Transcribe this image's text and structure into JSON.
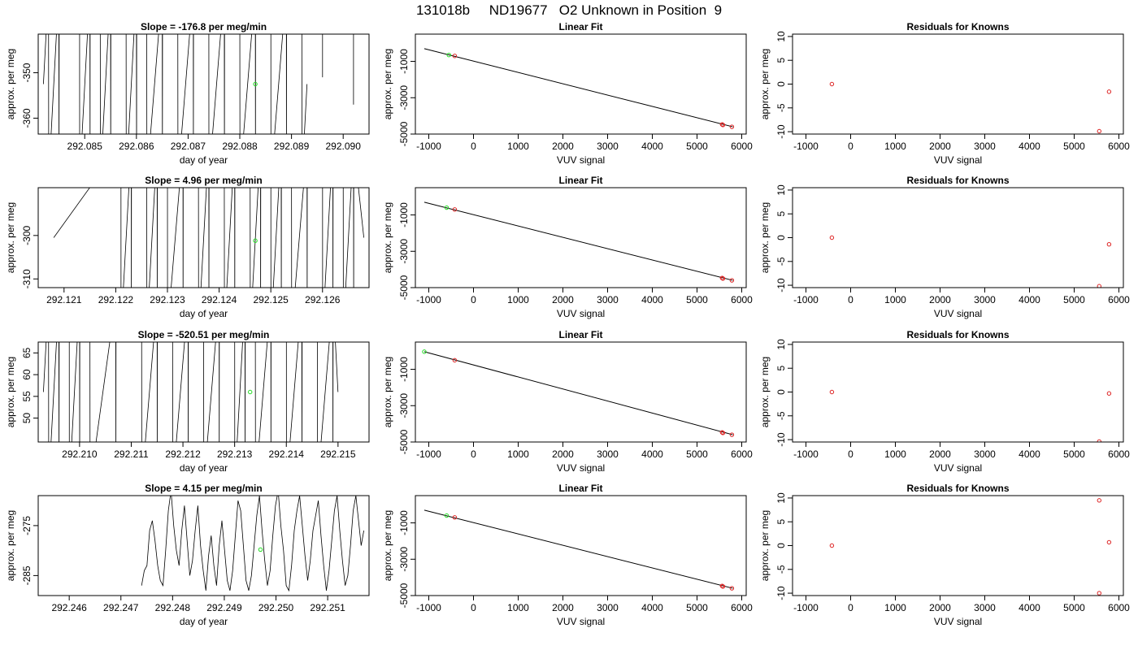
{
  "page_title": "131018b     ND19677   O2 Unknown in Position  9",
  "colors": {
    "known_point": "#dd2222",
    "unknown_point": "#22dd22",
    "line": "#000000"
  },
  "chart_data": [
    {
      "type": "line",
      "title": "Slope =  -176.8  per meg/min",
      "xlabel": "day of year",
      "ylabel": "approx. per meg",
      "xlim": [
        292.0841,
        292.0905
      ],
      "ylim": [
        -363.5,
        -341.5
      ],
      "xticks": [
        "292.085",
        "292.086",
        "292.087",
        "292.088",
        "292.089",
        "292.090"
      ],
      "yticks": [
        "-360",
        "-350"
      ],
      "trace_style": "spikes",
      "x_start": 292.0842,
      "x_end": 292.0893,
      "spike_days": [
        292.0843,
        292.0845,
        292.0849,
        292.0851,
        292.0853,
        292.0855,
        292.0858,
        292.086,
        292.0862,
        292.0865,
        292.0868,
        292.0871,
        292.0874,
        292.0877,
        292.088,
        292.0883,
        292.0886,
        292.0889,
        292.0892
      ],
      "tail_x": [
        292.0896,
        292.0902
      ],
      "tail_y": [
        -351,
        -357
      ],
      "points": [
        {
          "x": 292.0883,
          "y": -352.5,
          "kind": "unknown"
        }
      ]
    },
    {
      "type": "scatter",
      "title": "Linear Fit",
      "xlabel": "VUV signal",
      "ylabel": "approx. per meg",
      "xlim": [
        -1300,
        6100
      ],
      "ylim": [
        -5000,
        500
      ],
      "xticks": [
        "-1000",
        "0",
        "1000",
        "2000",
        "3000",
        "4000",
        "5000",
        "6000"
      ],
      "yticks": [
        "-5000",
        "-3000",
        "-1000"
      ],
      "fit_line": {
        "x": [
          -1100,
          5800
        ],
        "y": [
          -300,
          -4600
        ]
      },
      "points": [
        {
          "x": -550,
          "y": -650,
          "kind": "unknown"
        },
        {
          "x": -420,
          "y": -700,
          "kind": "known"
        },
        {
          "x": 5560,
          "y": -4470,
          "kind": "known"
        },
        {
          "x": 5580,
          "y": -4500,
          "kind": "known"
        },
        {
          "x": 5780,
          "y": -4600,
          "kind": "known"
        }
      ]
    },
    {
      "type": "scatter",
      "title": "Residuals for Knowns",
      "xlabel": "VUV signal",
      "ylabel": "approx. per meg",
      "xlim": [
        -1300,
        6100
      ],
      "ylim": [
        -10.5,
        10.5
      ],
      "xticks": [
        "-1000",
        "0",
        "1000",
        "2000",
        "3000",
        "4000",
        "5000",
        "6000"
      ],
      "yticks": [
        "-10",
        "-5",
        "0",
        "5",
        "10"
      ],
      "points": [
        {
          "x": -420,
          "y": 0,
          "kind": "known"
        },
        {
          "x": 5560,
          "y": -9.9,
          "kind": "known"
        },
        {
          "x": 5780,
          "y": -1.6,
          "kind": "known"
        }
      ]
    },
    {
      "type": "line",
      "title": "Slope =  4.96  per meg/min",
      "xlabel": "day of year",
      "ylabel": "approx. per meg",
      "xlim": [
        292.1205,
        292.1269
      ],
      "ylim": [
        -312,
        -289
      ],
      "xticks": [
        "292.121",
        "292.122",
        "292.123",
        "292.124",
        "292.125",
        "292.126"
      ],
      "yticks": [
        "-310",
        "-300"
      ],
      "trace_style": "spikes",
      "x_start": 292.1208,
      "x_end": 292.1268,
      "spike_days": [
        292.1221,
        292.1223,
        292.1226,
        292.1228,
        292.123,
        292.1233,
        292.1236,
        292.1238,
        292.1241,
        292.1243,
        292.1246,
        292.1248,
        292.125,
        292.1252,
        292.1254,
        292.1257,
        292.126,
        292.1262,
        292.1264,
        292.1266
      ],
      "points": [
        {
          "x": 292.1247,
          "y": -301.2,
          "kind": "unknown"
        }
      ]
    },
    {
      "type": "scatter",
      "title": "Linear Fit",
      "xlabel": "VUV signal",
      "ylabel": "approx. per meg",
      "xlim": [
        -1300,
        6100
      ],
      "ylim": [
        -5000,
        500
      ],
      "xticks": [
        "-1000",
        "0",
        "1000",
        "2000",
        "3000",
        "4000",
        "5000",
        "6000"
      ],
      "yticks": [
        "-5000",
        "-3000",
        "-1000"
      ],
      "fit_line": {
        "x": [
          -1100,
          5800
        ],
        "y": [
          -300,
          -4600
        ]
      },
      "points": [
        {
          "x": -600,
          "y": -600,
          "kind": "unknown"
        },
        {
          "x": -420,
          "y": -700,
          "kind": "known"
        },
        {
          "x": 5560,
          "y": -4470,
          "kind": "known"
        },
        {
          "x": 5580,
          "y": -4500,
          "kind": "known"
        },
        {
          "x": 5780,
          "y": -4600,
          "kind": "known"
        }
      ]
    },
    {
      "type": "scatter",
      "title": "Residuals for Knowns",
      "xlabel": "VUV signal",
      "ylabel": "approx. per meg",
      "xlim": [
        -1300,
        6100
      ],
      "ylim": [
        -10.5,
        10.5
      ],
      "xticks": [
        "-1000",
        "0",
        "1000",
        "2000",
        "3000",
        "4000",
        "5000",
        "6000"
      ],
      "yticks": [
        "-10",
        "-5",
        "0",
        "5",
        "10"
      ],
      "points": [
        {
          "x": -420,
          "y": 0,
          "kind": "known"
        },
        {
          "x": 5560,
          "y": -10.2,
          "kind": "known"
        },
        {
          "x": 5780,
          "y": -1.4,
          "kind": "known"
        }
      ]
    },
    {
      "type": "line",
      "title": "Slope =  -520.51  per meg/min",
      "xlabel": "day of year",
      "ylabel": "approx. per meg",
      "xlim": [
        292.2092,
        292.2156
      ],
      "ylim": [
        44.5,
        67.5
      ],
      "xticks": [
        "292.210",
        "292.211",
        "292.212",
        "292.213",
        "292.214",
        "292.215"
      ],
      "yticks": [
        "50",
        "55",
        "60",
        "65"
      ],
      "trace_style": "spikes",
      "x_start": 292.2093,
      "x_end": 292.215,
      "spike_days": [
        292.2094,
        292.2096,
        292.2098,
        292.21,
        292.2102,
        292.2107,
        292.2112,
        292.2115,
        292.2118,
        292.2121,
        292.2124,
        292.2127,
        292.213,
        292.2132,
        292.2134,
        292.2137,
        292.214,
        292.2143,
        292.2146,
        292.2149
      ],
      "points": [
        {
          "x": 292.2133,
          "y": 56,
          "kind": "unknown"
        }
      ]
    },
    {
      "type": "scatter",
      "title": "Linear Fit",
      "xlabel": "VUV signal",
      "ylabel": "approx. per meg",
      "xlim": [
        -1300,
        6100
      ],
      "ylim": [
        -5000,
        500
      ],
      "xticks": [
        "-1000",
        "0",
        "1000",
        "2000",
        "3000",
        "4000",
        "5000",
        "6000"
      ],
      "yticks": [
        "-5000",
        "-3000",
        "-1000"
      ],
      "fit_line": {
        "x": [
          -1100,
          5800
        ],
        "y": [
          -30,
          -4600
        ]
      },
      "points": [
        {
          "x": -1100,
          "y": -30,
          "kind": "unknown"
        },
        {
          "x": -420,
          "y": -500,
          "kind": "known"
        },
        {
          "x": 5560,
          "y": -4470,
          "kind": "known"
        },
        {
          "x": 5580,
          "y": -4500,
          "kind": "known"
        },
        {
          "x": 5780,
          "y": -4600,
          "kind": "known"
        }
      ]
    },
    {
      "type": "scatter",
      "title": "Residuals for Knowns",
      "xlabel": "VUV signal",
      "ylabel": "approx. per meg",
      "xlim": [
        -1300,
        6100
      ],
      "ylim": [
        -10.5,
        10.5
      ],
      "xticks": [
        "-1000",
        "0",
        "1000",
        "2000",
        "3000",
        "4000",
        "5000",
        "6000"
      ],
      "yticks": [
        "-10",
        "-5",
        "0",
        "5",
        "10"
      ],
      "points": [
        {
          "x": -420,
          "y": 0,
          "kind": "known"
        },
        {
          "x": 5560,
          "y": -10.4,
          "kind": "known"
        },
        {
          "x": 5780,
          "y": -0.3,
          "kind": "known"
        }
      ]
    },
    {
      "type": "line",
      "title": "Slope =  4.15  per meg/min",
      "xlabel": "day of year",
      "ylabel": "approx. per meg",
      "xlim": [
        292.2454,
        292.2518
      ],
      "ylim": [
        -289,
        -269
      ],
      "xticks": [
        "292.246",
        "292.247",
        "292.248",
        "292.249",
        "292.250",
        "292.251"
      ],
      "yticks": [
        "-285",
        "-275"
      ],
      "trace_style": "noise",
      "x_start": 292.2474,
      "x_end": 292.2517,
      "noise_y": [
        -287,
        -284,
        -283,
        -276,
        -274,
        -278,
        -283,
        -286,
        -287,
        -280,
        -272,
        -268,
        -275,
        -280,
        -283,
        -276,
        -271,
        -278,
        -285,
        -282,
        -276,
        -271,
        -279,
        -284,
        -288,
        -281,
        -277,
        -283,
        -287,
        -279,
        -274,
        -280,
        -286,
        -288,
        -284,
        -277,
        -270,
        -272,
        -279,
        -286,
        -288,
        -285,
        -279,
        -273,
        -269,
        -276,
        -282,
        -287,
        -284,
        -277,
        -271,
        -268,
        -275,
        -280,
        -287,
        -288,
        -283,
        -276,
        -272,
        -269,
        -275,
        -281,
        -286,
        -282,
        -276,
        -273,
        -270,
        -277,
        -283,
        -288,
        -284,
        -278,
        -272,
        -269,
        -276,
        -282,
        -287,
        -285,
        -279,
        -272,
        -269,
        -274,
        -279,
        -276
      ],
      "points": [
        {
          "x": 292.2497,
          "y": -279.8,
          "kind": "unknown"
        }
      ]
    },
    {
      "type": "scatter",
      "title": "Linear Fit",
      "xlabel": "VUV signal",
      "ylabel": "approx. per meg",
      "xlim": [
        -1300,
        6100
      ],
      "ylim": [
        -5000,
        500
      ],
      "xticks": [
        "-1000",
        "0",
        "1000",
        "2000",
        "3000",
        "4000",
        "5000",
        "6000"
      ],
      "yticks": [
        "-5000",
        "-3000",
        "-1000"
      ],
      "fit_line": {
        "x": [
          -1100,
          5800
        ],
        "y": [
          -300,
          -4600
        ]
      },
      "points": [
        {
          "x": -600,
          "y": -600,
          "kind": "unknown"
        },
        {
          "x": -420,
          "y": -700,
          "kind": "known"
        },
        {
          "x": 5560,
          "y": -4470,
          "kind": "known"
        },
        {
          "x": 5580,
          "y": -4500,
          "kind": "known"
        },
        {
          "x": 5780,
          "y": -4600,
          "kind": "known"
        }
      ]
    },
    {
      "type": "scatter",
      "title": "Residuals for Knowns",
      "xlabel": "VUV signal",
      "ylabel": "approx. per meg",
      "xlim": [
        -1300,
        6100
      ],
      "ylim": [
        -10.5,
        10.5
      ],
      "xticks": [
        "-1000",
        "0",
        "1000",
        "2000",
        "3000",
        "4000",
        "5000",
        "6000"
      ],
      "yticks": [
        "-10",
        "-5",
        "0",
        "5",
        "10"
      ],
      "points": [
        {
          "x": -420,
          "y": 0,
          "kind": "known"
        },
        {
          "x": 5560,
          "y": 9.5,
          "kind": "known"
        },
        {
          "x": 5780,
          "y": 0.7,
          "kind": "known"
        },
        {
          "x": 5560,
          "y": -10.0,
          "kind": "known"
        }
      ]
    }
  ]
}
